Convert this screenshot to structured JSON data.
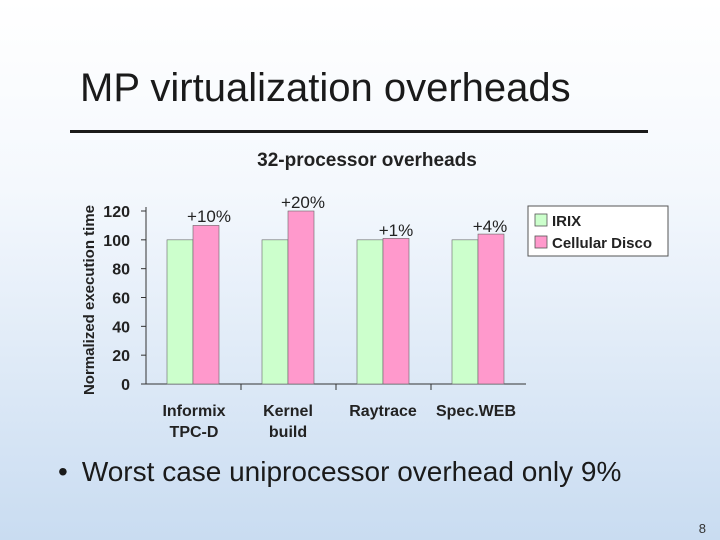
{
  "slide": {
    "title": "MP virtualization overheads",
    "bullet": "Worst case uniprocessor overhead only 9%",
    "page_number": "8"
  },
  "chart_data": {
    "type": "bar",
    "title": "32-processor overheads",
    "xlabel": "",
    "ylabel": "Normalized execution time",
    "ylim": [
      0,
      120
    ],
    "yticks": [
      0,
      20,
      40,
      60,
      80,
      100,
      120
    ],
    "categories": [
      "Informix TPC-D",
      "Kernel build",
      "Raytrace",
      "Spec.WEB"
    ],
    "series": [
      {
        "name": "IRIX",
        "values": [
          100,
          100,
          100,
          100
        ],
        "color": "#ccffcc"
      },
      {
        "name": "Cellular Disco",
        "values": [
          110,
          120,
          101,
          104
        ],
        "color": "#ff99cc"
      }
    ],
    "annotations": [
      "+10%",
      "+20%",
      "+1%",
      "+4%"
    ],
    "legend": "top-right",
    "grid": false
  }
}
